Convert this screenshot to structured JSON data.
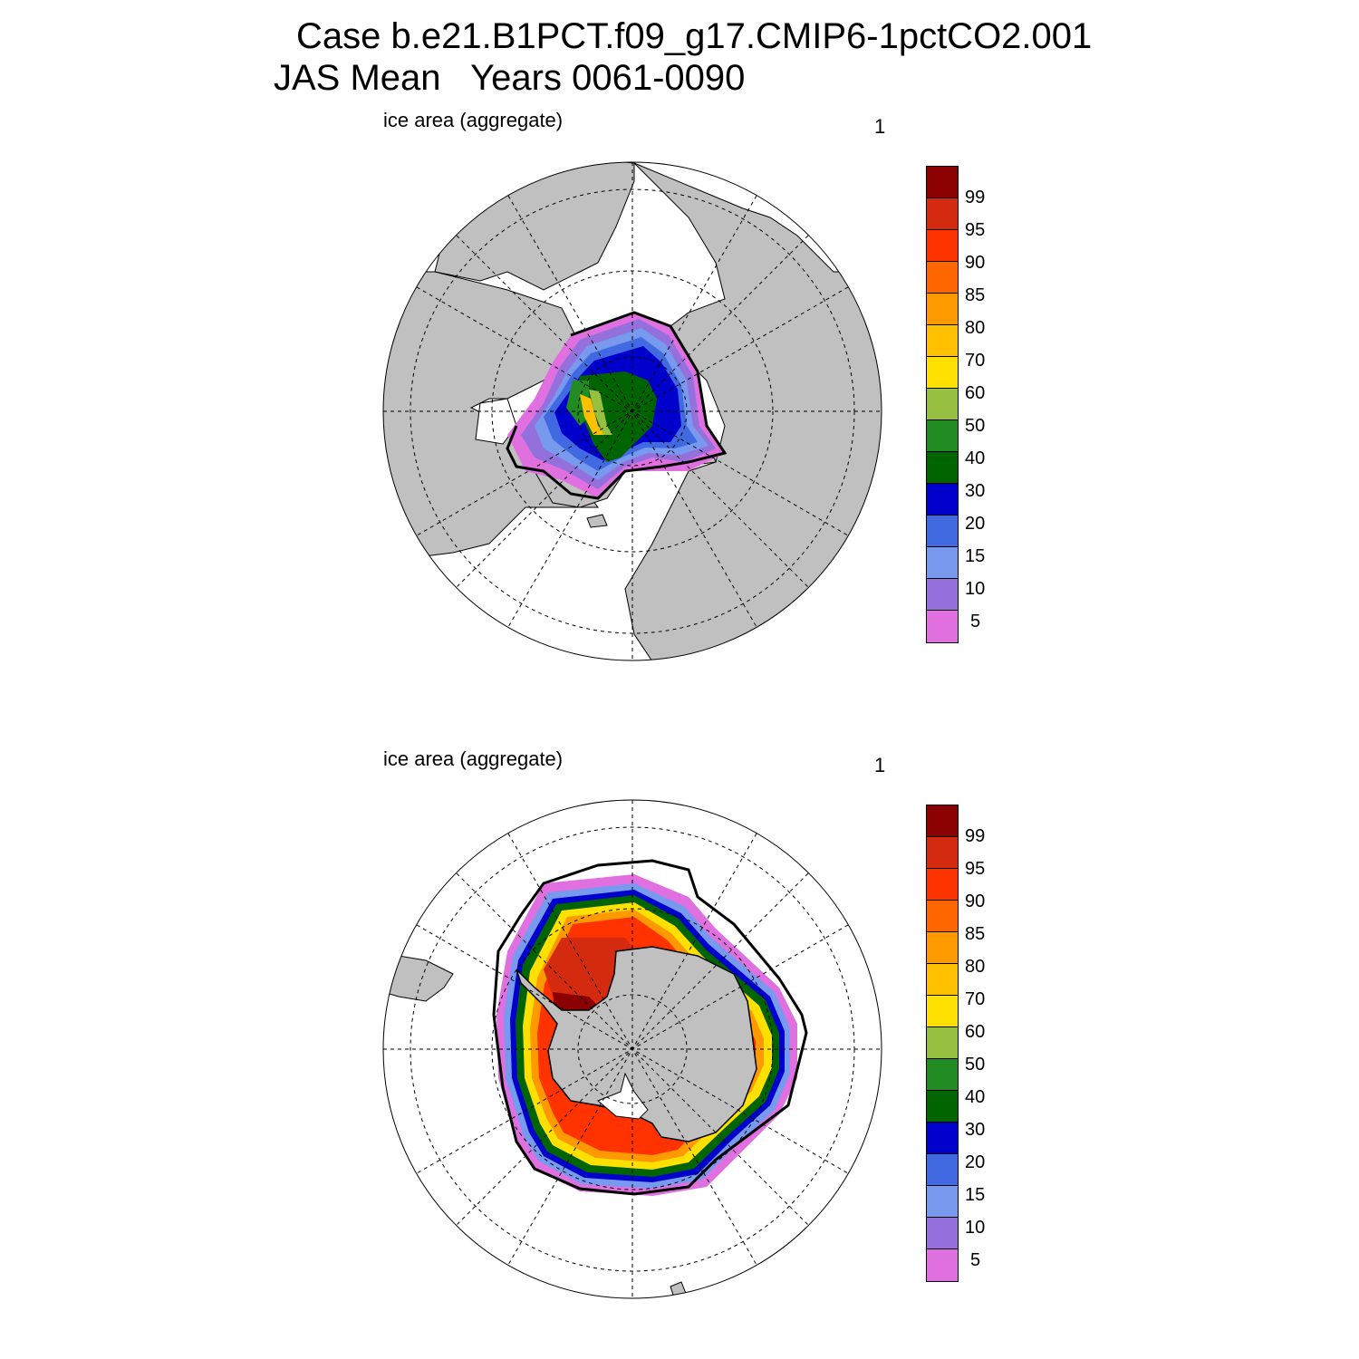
{
  "title_line1": "Case b.e21.B1PCT.f09_g17.CMIP6-1pctCO2.001",
  "title_line2": "JAS Mean   Years 0061-0090",
  "panels": [
    {
      "label": "ice area  (aggregate)",
      "number": "1",
      "hemisphere": "north"
    },
    {
      "label": "ice area  (aggregate)",
      "number": "1",
      "hemisphere": "south"
    }
  ],
  "colorbar": {
    "labels": [
      "99",
      "95",
      "90",
      "85",
      "80",
      "70",
      "60",
      "50",
      "40",
      "30",
      "20",
      "15",
      "10",
      "5"
    ],
    "colors": [
      "#8b0000",
      "#d42a10",
      "#ff3300",
      "#ff6600",
      "#ff9900",
      "#ffc000",
      "#ffe000",
      "#98c040",
      "#228b22",
      "#006400",
      "#0000cd",
      "#4169e1",
      "#7799ee",
      "#9370db",
      "#e070e0"
    ]
  },
  "colors": {
    "land": "#c0c0c0",
    "ocean": "#ffffff",
    "grid": "#000000",
    "extent_line": "#000000"
  }
}
